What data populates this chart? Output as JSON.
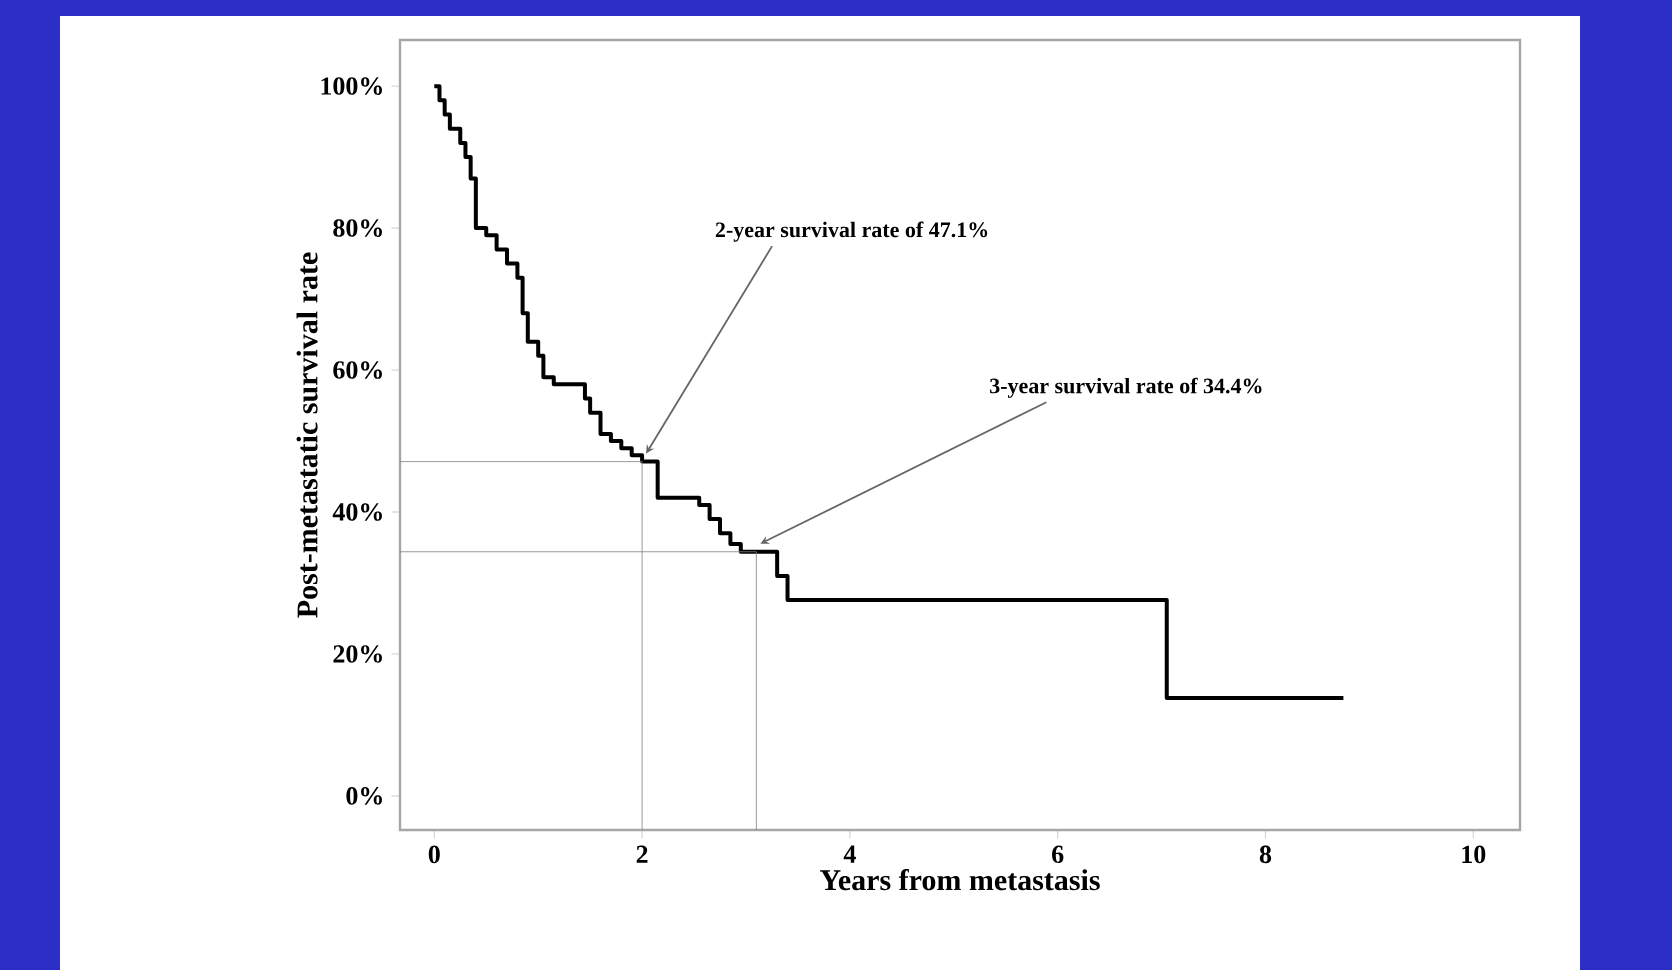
{
  "chart_data": {
    "type": "step",
    "xlabel": "Years from metastasis",
    "ylabel": "Post-metastatic survival rate",
    "x": [
      0,
      0.05,
      0.1,
      0.15,
      0.25,
      0.3,
      0.35,
      0.4,
      0.5,
      0.6,
      0.7,
      0.8,
      0.85,
      0.9,
      1.0,
      1.05,
      1.15,
      1.45,
      1.5,
      1.6,
      1.7,
      1.8,
      1.9,
      2.0,
      2.15,
      2.55,
      2.65,
      2.75,
      2.85,
      2.95,
      3.3,
      3.4,
      7.05,
      8.75
    ],
    "values": [
      100,
      98,
      96,
      94,
      92,
      90,
      87,
      80,
      79,
      77,
      75,
      73,
      68,
      64,
      62,
      59,
      58,
      56,
      54,
      51,
      50,
      49,
      48,
      47.1,
      42,
      41,
      39,
      37,
      35.5,
      34.4,
      31,
      27.6,
      13.8,
      13.8
    ],
    "color": "#000000",
    "marker": "none",
    "line_style": "solid",
    "xlim": [
      -0.33,
      10.45
    ],
    "ylim": [
      -4.8,
      106.5
    ],
    "xticks": [
      0,
      2,
      4,
      6,
      8,
      10
    ],
    "yticks": [
      {
        "value": 0,
        "label": "0%"
      },
      {
        "value": 20,
        "label": "20%"
      },
      {
        "value": 40,
        "label": "40%"
      },
      {
        "value": 60,
        "label": "60%"
      },
      {
        "value": 80,
        "label": "80%"
      },
      {
        "value": 100,
        "label": "100%"
      }
    ],
    "grid": false,
    "ref_lines": [
      {
        "axis": "y",
        "value": 47.1
      },
      {
        "axis": "x",
        "value": 2
      },
      {
        "axis": "y",
        "value": 34.4
      },
      {
        "axis": "x",
        "value": 3.1
      }
    ],
    "annotations": [
      {
        "text": "2-year survival rate of 47.1%",
        "x": 2,
        "y": 47.1
      },
      {
        "text": "3-year survival rate of 34.4%",
        "x": 3.1,
        "y": 34.4
      }
    ]
  }
}
